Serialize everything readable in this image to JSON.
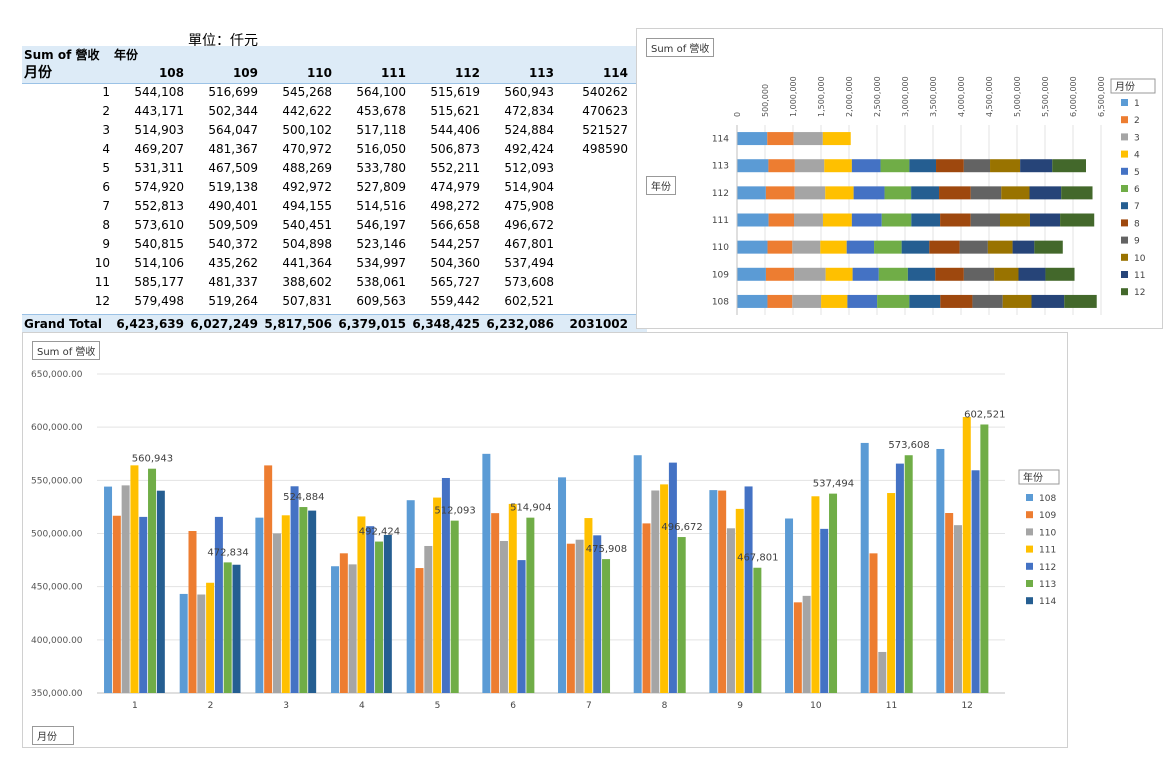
{
  "unit_label": "單位：仟元",
  "pivot": {
    "value_field": "Sum of 營收",
    "column_field": "年份",
    "row_field": "月份",
    "years": [
      "108",
      "109",
      "110",
      "111",
      "112",
      "113",
      "114"
    ],
    "rows": [
      {
        "month": "1",
        "values": [
          "544,108",
          "516,699",
          "545,268",
          "564,100",
          "515,619",
          "560,943",
          "540262"
        ]
      },
      {
        "month": "2",
        "values": [
          "443,171",
          "502,344",
          "442,622",
          "453,678",
          "515,621",
          "472,834",
          "470623"
        ]
      },
      {
        "month": "3",
        "values": [
          "514,903",
          "564,047",
          "500,102",
          "517,118",
          "544,406",
          "524,884",
          "521527"
        ]
      },
      {
        "month": "4",
        "values": [
          "469,207",
          "481,367",
          "470,972",
          "516,050",
          "506,873",
          "492,424",
          "498590"
        ]
      },
      {
        "month": "5",
        "values": [
          "531,311",
          "467,509",
          "488,269",
          "533,780",
          "552,211",
          "512,093",
          ""
        ]
      },
      {
        "month": "6",
        "values": [
          "574,920",
          "519,138",
          "492,972",
          "527,809",
          "474,979",
          "514,904",
          ""
        ]
      },
      {
        "month": "7",
        "values": [
          "552,813",
          "490,401",
          "494,155",
          "514,516",
          "498,272",
          "475,908",
          ""
        ]
      },
      {
        "month": "8",
        "values": [
          "573,610",
          "509,509",
          "540,451",
          "546,197",
          "566,658",
          "496,672",
          ""
        ]
      },
      {
        "month": "9",
        "values": [
          "540,815",
          "540,372",
          "504,898",
          "523,146",
          "544,257",
          "467,801",
          ""
        ]
      },
      {
        "month": "10",
        "values": [
          "514,106",
          "435,262",
          "441,364",
          "534,997",
          "504,360",
          "537,494",
          ""
        ]
      },
      {
        "month": "11",
        "values": [
          "585,177",
          "481,337",
          "388,602",
          "538,061",
          "565,727",
          "573,608",
          ""
        ]
      },
      {
        "month": "12",
        "values": [
          "579,498",
          "519,264",
          "507,831",
          "609,563",
          "559,442",
          "602,521",
          ""
        ]
      }
    ],
    "total_label": "Grand Total",
    "totals": [
      "6,423,639",
      "6,027,249",
      "5,817,506",
      "6,379,015",
      "6,348,425",
      "6,232,086",
      "2031002"
    ]
  },
  "colors": {
    "108": "#5b9bd5",
    "109": "#ed7d31",
    "110": "#a5a5a5",
    "111": "#ffc000",
    "112": "#4472c4",
    "113": "#70ad47",
    "114": "#255e91",
    "months": [
      "#5b9bd5",
      "#ed7d31",
      "#a5a5a5",
      "#ffc000",
      "#4472c4",
      "#70ad47",
      "#255e91",
      "#9e480e",
      "#636363",
      "#997300",
      "#264478",
      "#43682b"
    ]
  },
  "chart_data": [
    {
      "type": "bar",
      "orientation": "horizontal",
      "stacked": true,
      "field_button": "Sum of 營收",
      "axis_field_button": "年份",
      "legend_title": "月份",
      "legend_position": "right",
      "categories": [
        "114",
        "113",
        "112",
        "111",
        "110",
        "109",
        "108"
      ],
      "series": [
        {
          "name": "1",
          "values": [
            540262,
            560943,
            515619,
            564100,
            545268,
            516699,
            544108
          ]
        },
        {
          "name": "2",
          "values": [
            470623,
            472834,
            515621,
            453678,
            442622,
            502344,
            443171
          ]
        },
        {
          "name": "3",
          "values": [
            521527,
            524884,
            544406,
            517118,
            500102,
            564047,
            514903
          ]
        },
        {
          "name": "4",
          "values": [
            498590,
            492424,
            506873,
            516050,
            470972,
            481367,
            469207
          ]
        },
        {
          "name": "5",
          "values": [
            0,
            512093,
            552211,
            533780,
            488269,
            467509,
            531311
          ]
        },
        {
          "name": "6",
          "values": [
            0,
            514904,
            474979,
            527809,
            492972,
            519138,
            574920
          ]
        },
        {
          "name": "7",
          "values": [
            0,
            475908,
            498272,
            514516,
            494155,
            490401,
            552813
          ]
        },
        {
          "name": "8",
          "values": [
            0,
            496672,
            566658,
            546197,
            540451,
            509509,
            573610
          ]
        },
        {
          "name": "9",
          "values": [
            0,
            467801,
            544257,
            523146,
            504898,
            540372,
            540815
          ]
        },
        {
          "name": "10",
          "values": [
            0,
            537494,
            504360,
            534997,
            441364,
            435262,
            514106
          ]
        },
        {
          "name": "11",
          "values": [
            0,
            573608,
            565727,
            538061,
            388602,
            481337,
            585177
          ]
        },
        {
          "name": "12",
          "values": [
            0,
            602521,
            559442,
            609563,
            507831,
            519264,
            579498
          ]
        }
      ],
      "xlim": [
        0,
        6500000
      ],
      "xticks": [
        "0",
        "500,000",
        "1,000,000",
        "1,500,000",
        "2,000,000",
        "2,500,000",
        "3,000,000",
        "3,500,000",
        "4,000,000",
        "4,500,000",
        "5,000,000",
        "5,500,000",
        "6,000,000",
        "6,500,000"
      ],
      "grid": true
    },
    {
      "type": "bar",
      "orientation": "vertical",
      "field_button": "Sum of 營收",
      "axis_field_button": "月份",
      "legend_title": "年份",
      "legend_position": "right",
      "categories": [
        "1",
        "2",
        "3",
        "4",
        "5",
        "6",
        "7",
        "8",
        "9",
        "10",
        "11",
        "12"
      ],
      "series": [
        {
          "name": "108",
          "values": [
            544108,
            443171,
            514903,
            469207,
            531311,
            574920,
            552813,
            573610,
            540815,
            514106,
            585177,
            579498
          ]
        },
        {
          "name": "109",
          "values": [
            516699,
            502344,
            564047,
            481367,
            467509,
            519138,
            490401,
            509509,
            540372,
            435262,
            481337,
            519264
          ]
        },
        {
          "name": "110",
          "values": [
            545268,
            442622,
            500102,
            470972,
            488269,
            492972,
            494155,
            540451,
            504898,
            441364,
            388602,
            507831
          ]
        },
        {
          "name": "111",
          "values": [
            564100,
            453678,
            517118,
            516050,
            533780,
            527809,
            514516,
            546197,
            523146,
            534997,
            538061,
            609563
          ]
        },
        {
          "name": "112",
          "values": [
            515619,
            515621,
            544406,
            506873,
            552211,
            474979,
            498272,
            566658,
            544257,
            504360,
            565727,
            559442
          ]
        },
        {
          "name": "113",
          "values": [
            560943,
            472834,
            524884,
            492424,
            512093,
            514904,
            475908,
            496672,
            467801,
            537494,
            573608,
            602521
          ]
        },
        {
          "name": "114",
          "values": [
            540262,
            470623,
            521527,
            498590,
            null,
            null,
            null,
            null,
            null,
            null,
            null,
            null
          ]
        }
      ],
      "data_labels_series": "113",
      "data_labels": [
        "560,943",
        "472,834",
        "524,884",
        "492,424",
        "512,093",
        "514,904",
        "475,908",
        "496,672",
        "467,801",
        "537,494",
        "573,608",
        "602,521"
      ],
      "ylim": [
        350000,
        650000
      ],
      "yticks": [
        "350,000.00",
        "400,000.00",
        "450,000.00",
        "500,000.00",
        "550,000.00",
        "600,000.00",
        "650,000.00"
      ],
      "grid": true
    }
  ]
}
